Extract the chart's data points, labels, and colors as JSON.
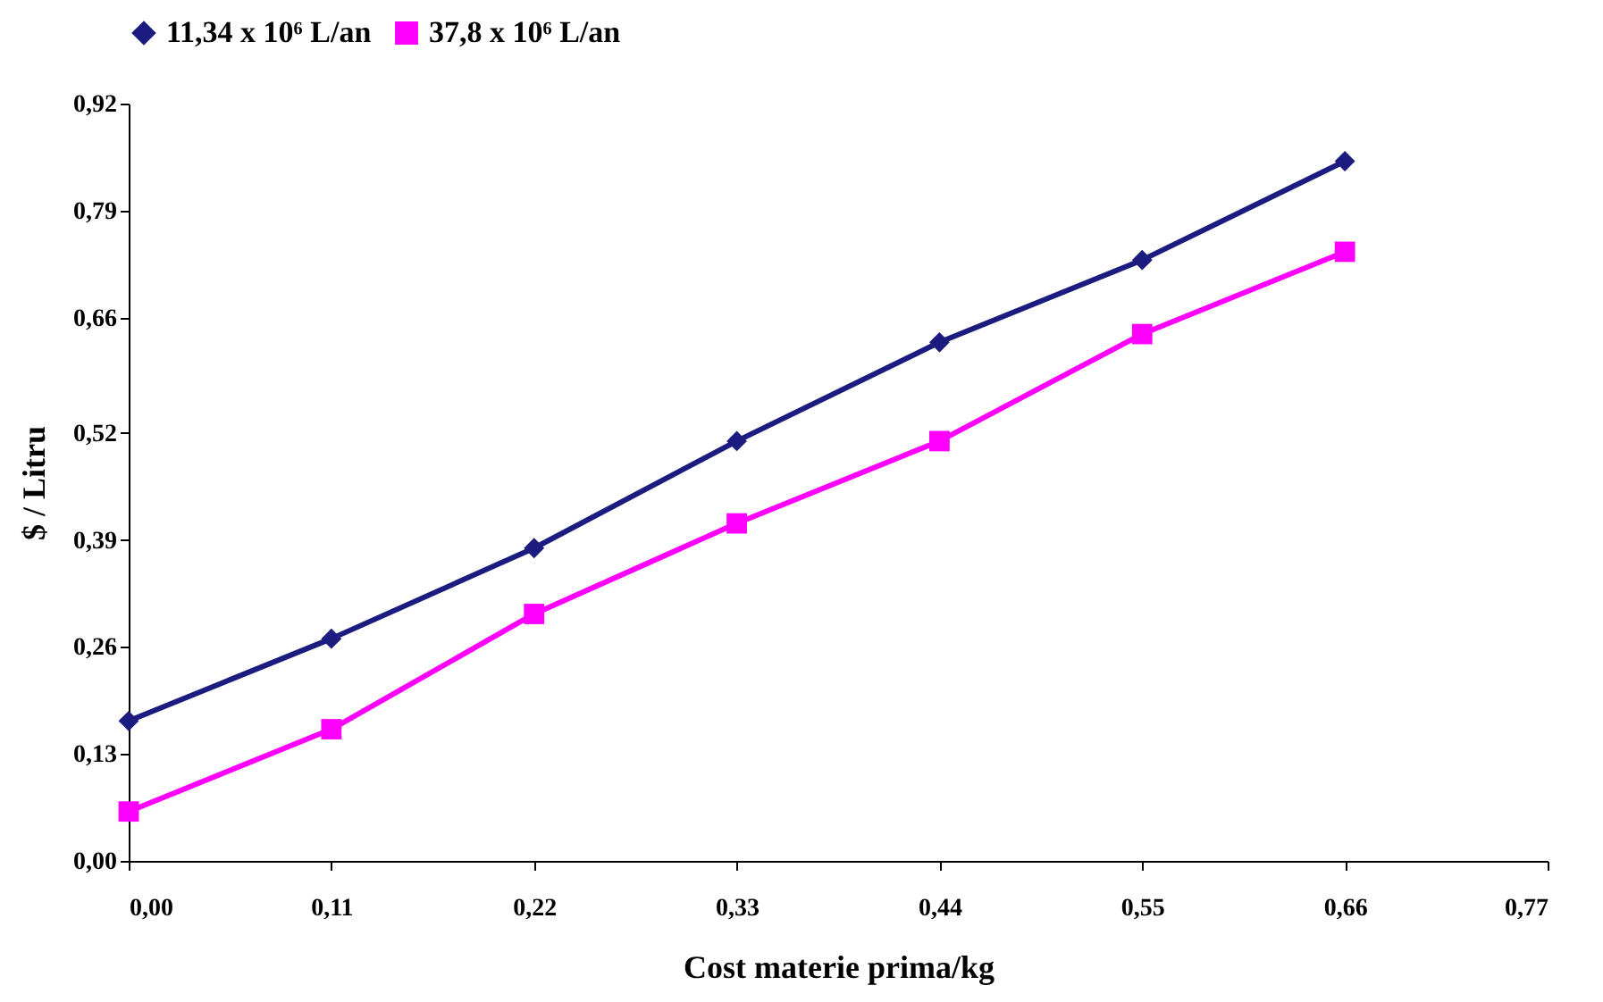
{
  "chart_data": {
    "type": "line",
    "xlabel": "Cost materie prima/kg",
    "ylabel": "$ / Litru",
    "x": [
      0,
      0.11,
      0.22,
      0.33,
      0.44,
      0.55,
      0.66
    ],
    "series": [
      {
        "name": "11,34 x 10⁶ L/an",
        "color": "#1c1c80",
        "marker": "diamond",
        "values": [
          0.17,
          0.27,
          0.38,
          0.51,
          0.63,
          0.73,
          0.85
        ]
      },
      {
        "name": "37,8 x 10⁶ L/an",
        "color": "#ff00ff",
        "marker": "square",
        "values": [
          0.06,
          0.16,
          0.3,
          0.41,
          0.51,
          0.64,
          0.74
        ]
      }
    ],
    "xlim": [
      0,
      0.77
    ],
    "xticks": [
      {
        "value": 0,
        "label": "0,00"
      },
      {
        "value": 0.11,
        "label": "0,11"
      },
      {
        "value": 0.22,
        "label": "0,22"
      },
      {
        "value": 0.33,
        "label": "0,33"
      },
      {
        "value": 0.44,
        "label": "0,44"
      },
      {
        "value": 0.55,
        "label": "0,55"
      },
      {
        "value": 0.66,
        "label": "0,66"
      },
      {
        "value": 0.77,
        "label": "0,77"
      }
    ],
    "ylim": [
      0,
      0.92
    ],
    "yticks": [
      {
        "value": 0,
        "label": "0,00"
      },
      {
        "value": 0.13,
        "label": "0,13"
      },
      {
        "value": 0.26,
        "label": "0,26"
      },
      {
        "value": 0.39,
        "label": "0,39"
      },
      {
        "value": 0.52,
        "label": "0,52"
      },
      {
        "value": 0.66,
        "label": "0,66"
      },
      {
        "value": 0.79,
        "label": "0,79"
      },
      {
        "value": 0.92,
        "label": "0,92"
      }
    ],
    "grid": false,
    "legend": "top",
    "line_style": "solid"
  }
}
